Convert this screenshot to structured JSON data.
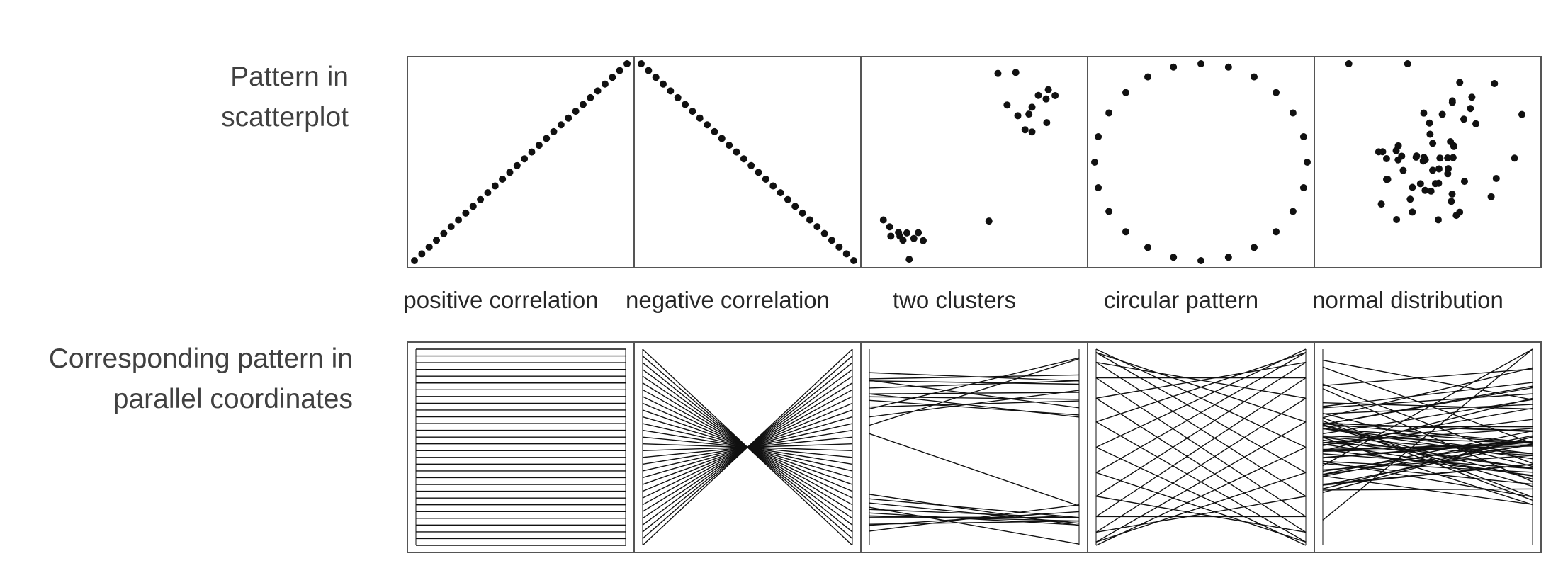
{
  "row_labels": {
    "scatter_line1": "Pattern in",
    "scatter_line2": "scatterplot",
    "parallel_line1": "Corresponding pattern in",
    "parallel_line2": "parallel coordinates"
  },
  "patterns": [
    {
      "caption": "positive correlation",
      "kind": "positive",
      "point_count": 30
    },
    {
      "caption": "negative correlation",
      "kind": "negative",
      "point_count": 30
    },
    {
      "caption": "two clusters",
      "kind": "clusters",
      "point_count": 25
    },
    {
      "caption": "circular pattern",
      "kind": "circle",
      "point_count": 24
    },
    {
      "caption": "normal distribution",
      "kind": "normal",
      "point_count": 60
    }
  ],
  "colors": {
    "marks": "#111111",
    "panel_border": "#555555",
    "label_text": "#404040",
    "caption_text": "#262626"
  }
}
